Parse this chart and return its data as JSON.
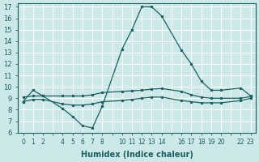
{
  "xlabel": "Humidex (Indice chaleur)",
  "bg_color": "#cce8e8",
  "grid_color": "#ffffff",
  "line_color": "#1a6060",
  "xlim": [
    -0.5,
    23.5
  ],
  "ylim": [
    6,
    17.3
  ],
  "yticks": [
    6,
    7,
    8,
    9,
    10,
    11,
    12,
    13,
    14,
    15,
    16,
    17
  ],
  "xtick_positions": [
    0,
    1,
    2,
    3,
    4,
    5,
    6,
    7,
    8,
    9,
    10,
    11,
    12,
    13,
    14,
    15,
    16,
    17,
    18,
    19,
    20,
    21,
    22,
    23
  ],
  "xtick_labels": [
    "0",
    "1",
    "2",
    "",
    "4",
    "5",
    "6",
    "7",
    "8",
    "",
    "10",
    "11",
    "12",
    "13",
    "14",
    "",
    "16",
    "17",
    "18",
    "19",
    "20",
    "",
    "22",
    "23"
  ],
  "line1_x": [
    0,
    1,
    2,
    4,
    5,
    6,
    7,
    8,
    10,
    11,
    12,
    13,
    14,
    16,
    17,
    18,
    19,
    20,
    22,
    23
  ],
  "line1_y": [
    8.7,
    9.7,
    9.2,
    8.1,
    7.4,
    6.6,
    6.4,
    8.3,
    13.3,
    15.0,
    17.0,
    17.0,
    16.2,
    13.2,
    12.0,
    10.5,
    9.7,
    9.7,
    9.9,
    9.2
  ],
  "line2_x": [
    0,
    1,
    2,
    4,
    5,
    6,
    7,
    8,
    10,
    11,
    12,
    13,
    14,
    16,
    17,
    18,
    19,
    20,
    22,
    23
  ],
  "line2_y": [
    9.1,
    9.2,
    9.2,
    9.2,
    9.2,
    9.2,
    9.3,
    9.5,
    9.6,
    9.65,
    9.7,
    9.8,
    9.85,
    9.6,
    9.3,
    9.1,
    9.0,
    9.0,
    9.0,
    9.15
  ],
  "line3_x": [
    0,
    1,
    2,
    4,
    5,
    6,
    7,
    8,
    10,
    11,
    12,
    13,
    14,
    16,
    17,
    18,
    19,
    20,
    22,
    23
  ],
  "line3_y": [
    8.7,
    8.9,
    8.9,
    8.5,
    8.4,
    8.4,
    8.5,
    8.7,
    8.8,
    8.9,
    9.0,
    9.1,
    9.1,
    8.8,
    8.7,
    8.6,
    8.6,
    8.6,
    8.8,
    9.0
  ],
  "marker_size": 2.5,
  "line_width": 0.9,
  "tick_fontsize": 5.5,
  "xlabel_fontsize": 7
}
